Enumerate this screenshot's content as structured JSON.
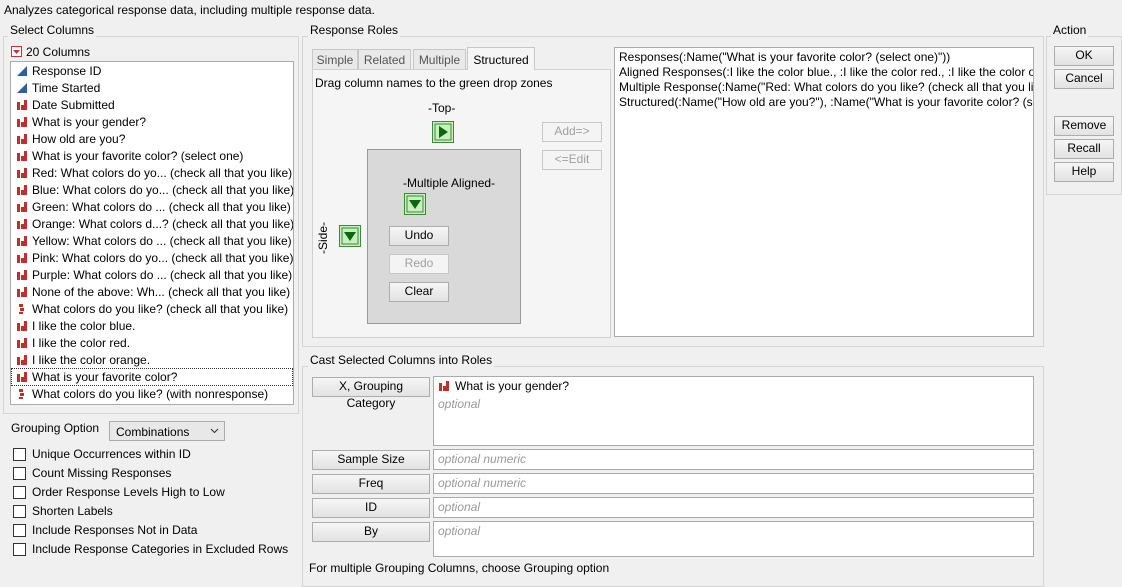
{
  "header": {
    "description": "Analyzes categorical response data, including multiple response data."
  },
  "select_columns": {
    "title": "Select Columns",
    "count": "20 Columns",
    "columns": [
      {
        "name": "Response ID",
        "type": "continuous"
      },
      {
        "name": "Time Started",
        "type": "continuous"
      },
      {
        "name": "Date Submitted",
        "type": "nominal"
      },
      {
        "name": "What is your gender?",
        "type": "nominal"
      },
      {
        "name": "How old are you?",
        "type": "nominal"
      },
      {
        "name": "What is your favorite color? (select one)",
        "type": "nominal"
      },
      {
        "name": "Red: What colors do yo... (check all that you like)",
        "type": "nominal"
      },
      {
        "name": "Blue: What colors do yo... (check all that you like)",
        "type": "nominal"
      },
      {
        "name": "Green: What colors do ... (check all that you like)",
        "type": "nominal"
      },
      {
        "name": "Orange: What colors d...? (check all that you like)",
        "type": "nominal"
      },
      {
        "name": "Yellow: What colors do ... (check all that you like)",
        "type": "nominal"
      },
      {
        "name": "Pink: What colors do yo... (check all that you like)",
        "type": "nominal"
      },
      {
        "name": "Purple: What colors do ... (check all that you like)",
        "type": "nominal"
      },
      {
        "name": "None of the above: Wh... (check all that you like)",
        "type": "nominal"
      },
      {
        "name": "What colors do you like? (check all that you like)",
        "type": "multiple"
      },
      {
        "name": "I like the color blue.",
        "type": "nominal"
      },
      {
        "name": "I like the color red.",
        "type": "nominal"
      },
      {
        "name": "I like the color orange.",
        "type": "nominal"
      },
      {
        "name": "What is your favorite color?",
        "type": "nominal",
        "focused": true
      },
      {
        "name": "What colors do you like? (with nonresponse)",
        "type": "multiple"
      }
    ]
  },
  "grouping": {
    "label": "Grouping Option",
    "value": "Combinations"
  },
  "options": [
    {
      "label": "Unique Occurrences within ID",
      "checked": false
    },
    {
      "label": "Count Missing Responses",
      "checked": false
    },
    {
      "label": "Order Response Levels High to Low",
      "checked": false
    },
    {
      "label": "Shorten Labels",
      "checked": false
    },
    {
      "label": "Include Responses Not in Data",
      "checked": false
    },
    {
      "label": "Include Response Categories in Excluded Rows",
      "checked": false
    }
  ],
  "response_roles": {
    "title": "Response Roles",
    "tabs": [
      {
        "label": "Simple"
      },
      {
        "label": "Related"
      },
      {
        "label": "Multiple"
      },
      {
        "label": "Structured",
        "active": true
      }
    ],
    "instruction": "Drag column names to the green drop zones",
    "top": "-Top-",
    "side": "-Side-",
    "multiple_aligned": "-Multiple Aligned-",
    "undo": {
      "label": "Undo",
      "enabled": true
    },
    "redo": {
      "label": "Redo",
      "enabled": false
    },
    "clear": {
      "label": "Clear",
      "enabled": true
    },
    "add": {
      "label": "Add=>",
      "enabled": false
    },
    "edit": {
      "label": "<=Edit",
      "enabled": false
    },
    "script": [
      "Responses(:Name(\"What is your favorite color? (select one)\"))",
      "Aligned Responses(:I like the color blue., :I like the color red., :I like the color or",
      "Multiple Response(:Name(\"Red: What colors do you like? (check all that you lik",
      "Structured(:Name(\"How old are you?\"), :Name(\"What is your favorite color? (se"
    ]
  },
  "cast": {
    "title": "Cast Selected Columns into Roles",
    "roles": [
      {
        "button": "X, Grouping Category",
        "items": [
          {
            "name": "What is your gender?",
            "type": "nominal"
          }
        ],
        "placeholder": "optional"
      },
      {
        "button": "Sample Size",
        "placeholder": "optional numeric"
      },
      {
        "button": "Freq",
        "placeholder": "optional numeric"
      },
      {
        "button": "ID",
        "placeholder": "optional"
      },
      {
        "button": "By",
        "placeholder": "optional"
      }
    ],
    "note": "For multiple Grouping Columns, choose Grouping option"
  },
  "action": {
    "title": "Action",
    "buttons": [
      "OK",
      "Cancel",
      "Remove",
      "Recall",
      "Help"
    ]
  }
}
